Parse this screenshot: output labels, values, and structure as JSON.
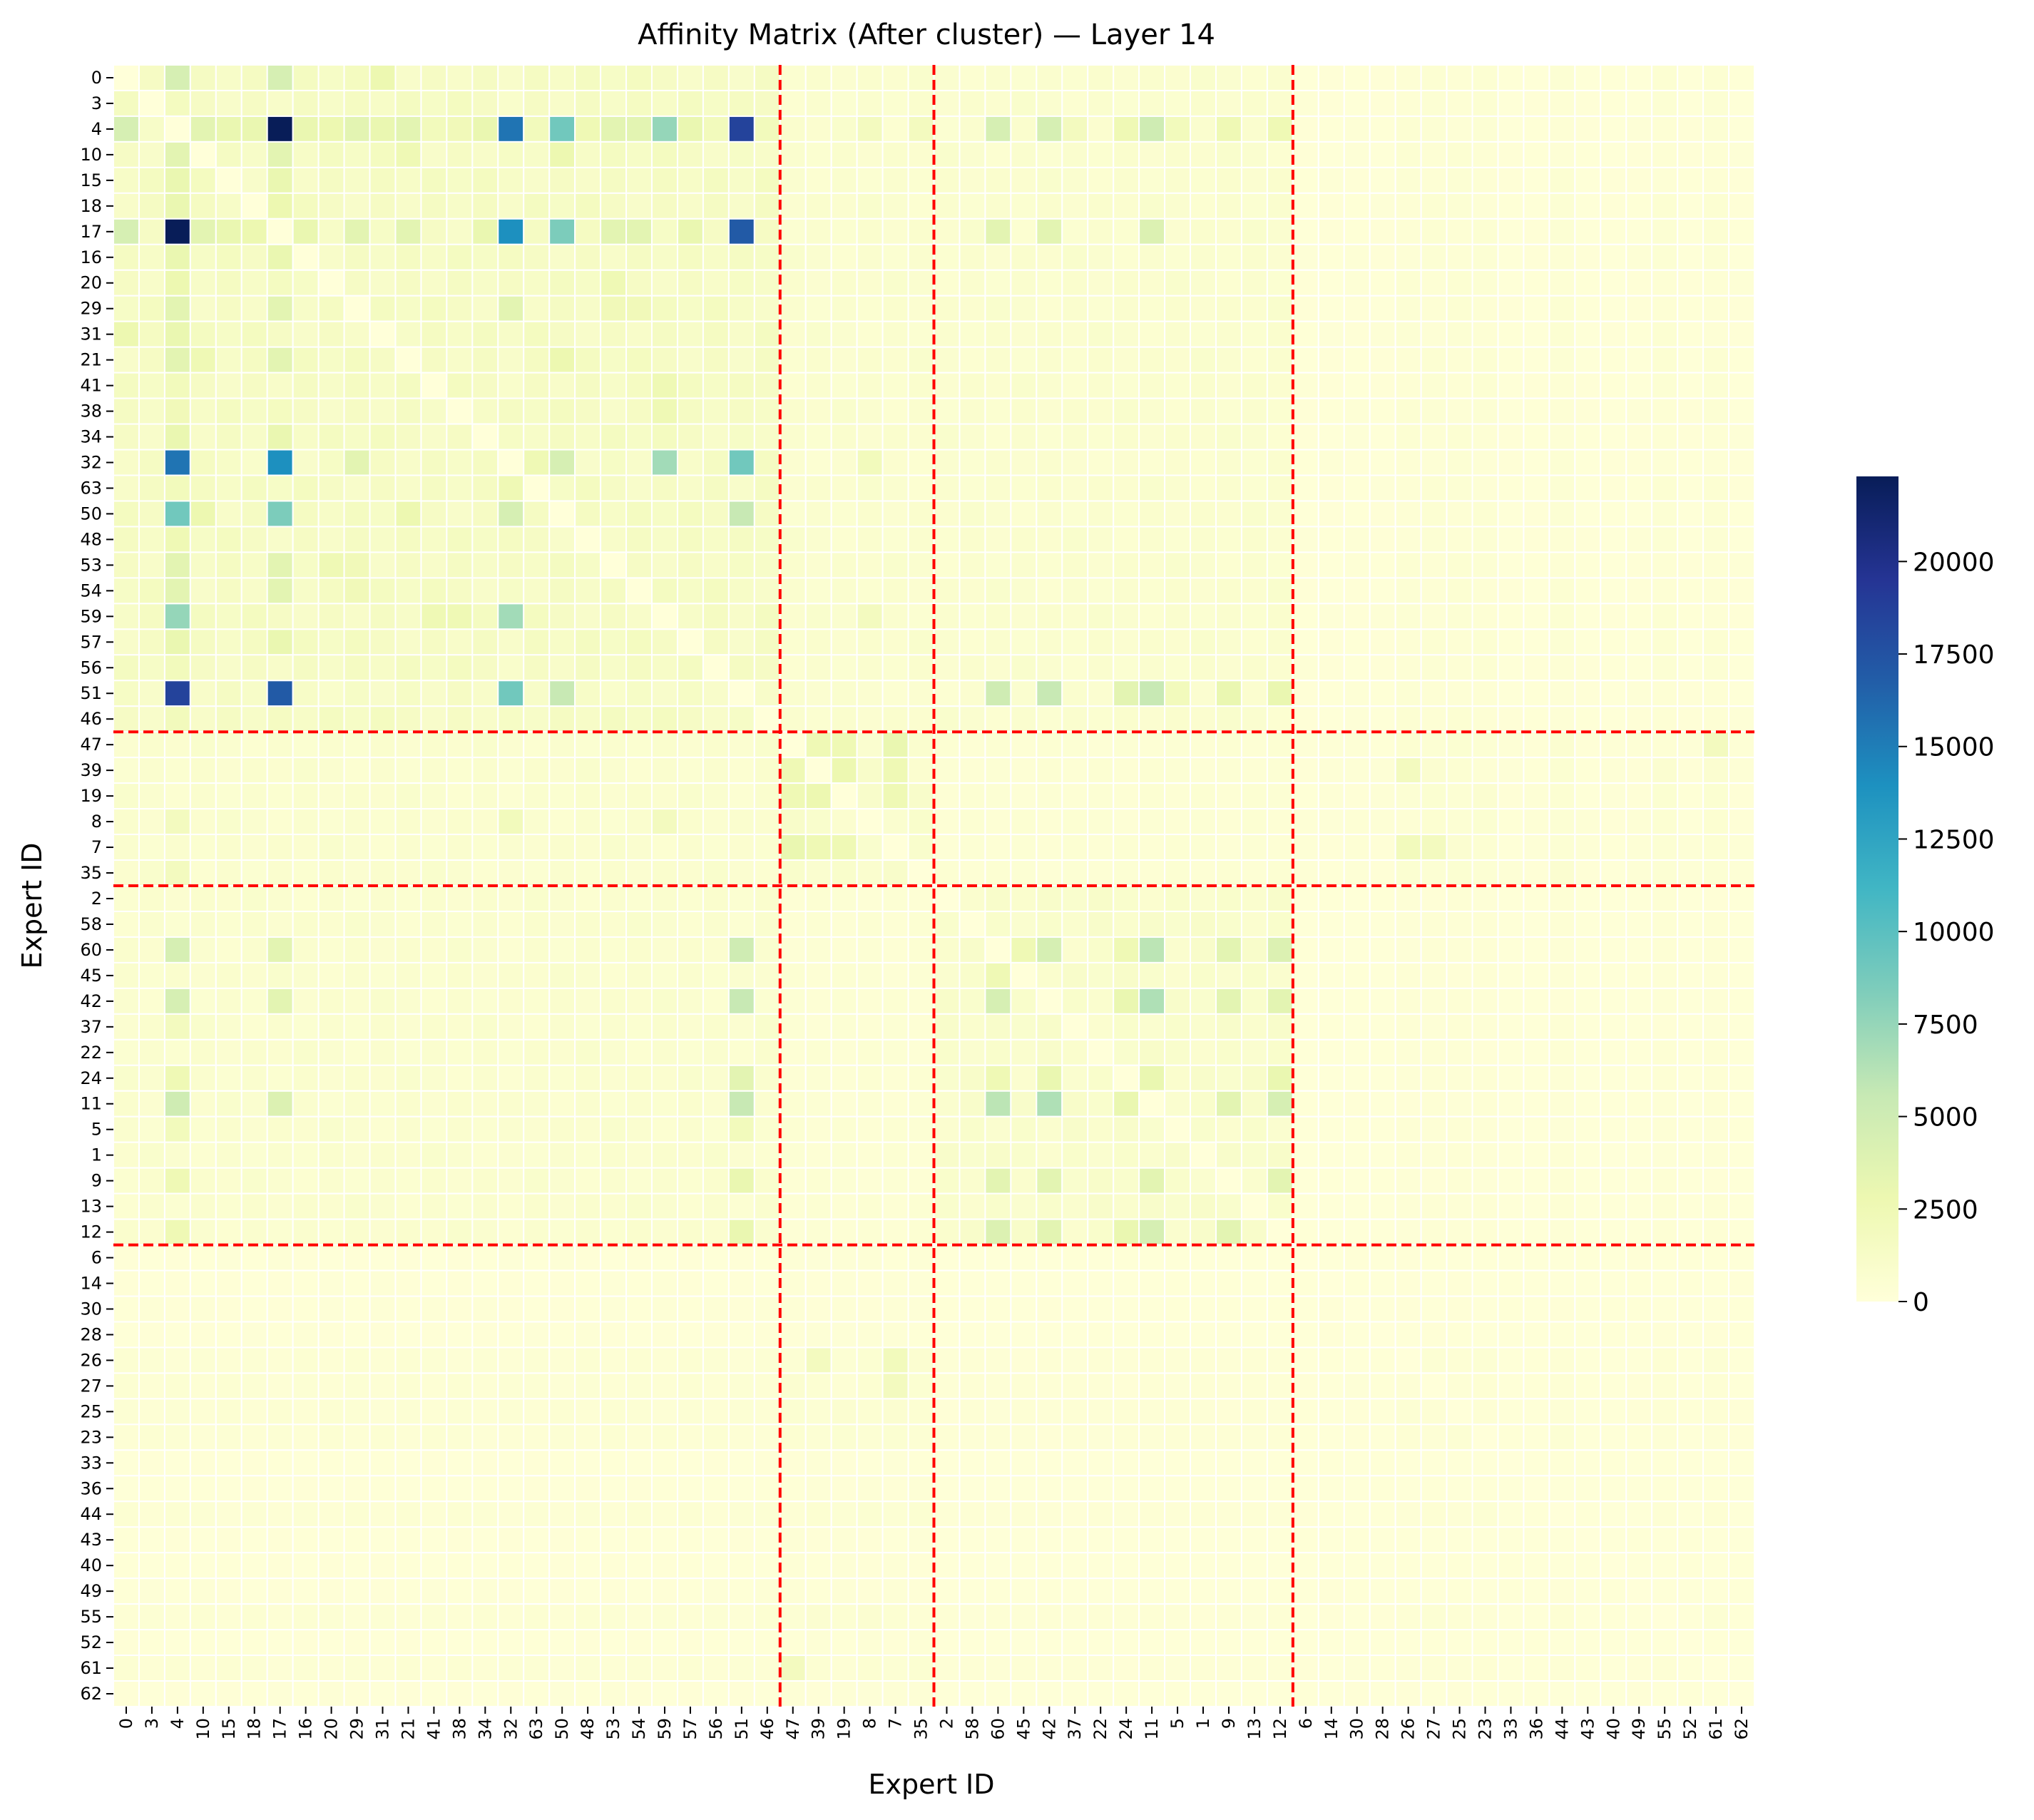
{
  "chart_data": {
    "type": "heatmap",
    "title": "Affinity Matrix (After cluster) — Layer 14",
    "xlabel": "Expert ID",
    "ylabel": "Expert ID",
    "order": [
      0,
      3,
      4,
      10,
      15,
      18,
      17,
      16,
      20,
      29,
      31,
      21,
      41,
      38,
      34,
      32,
      63,
      50,
      48,
      53,
      54,
      59,
      57,
      56,
      51,
      46,
      47,
      39,
      19,
      8,
      7,
      35,
      2,
      58,
      60,
      45,
      42,
      37,
      22,
      24,
      11,
      5,
      1,
      9,
      13,
      12,
      6,
      14,
      30,
      28,
      26,
      27,
      25,
      23,
      33,
      36,
      44,
      43,
      40,
      49,
      55,
      52,
      61,
      62
    ],
    "cluster_boundaries_after_index": [
      25,
      31,
      45
    ],
    "colorbar": {
      "min": 0,
      "max": 22300,
      "ticks": [
        0,
        2500,
        5000,
        7500,
        10000,
        12500,
        15000,
        17500,
        20000
      ],
      "colormap": [
        "#ffffd9",
        "#edf8b1",
        "#c7e9b4",
        "#7fcdbb",
        "#41b6c4",
        "#1d91c0",
        "#225ea8",
        "#253494",
        "#081d58"
      ]
    },
    "divider_color": "#ff0000",
    "grid": false,
    "values": {
      "default": 600,
      "background_by_block": {
        "c0c0": 1400,
        "c0c1": 700,
        "c0c2": 700,
        "c0c3": 400,
        "c1c1": 900,
        "c1c2": 400,
        "c1c3": 500,
        "c2c2": 900,
        "c2c3": 300,
        "c3c3": 350
      },
      "pairs": [
        [
          4,
          17,
          22300
        ],
        [
          4,
          51,
          18500
        ],
        [
          17,
          51,
          17000
        ],
        [
          4,
          32,
          15500
        ],
        [
          17,
          32,
          14000
        ],
        [
          4,
          50,
          9000
        ],
        [
          17,
          50,
          8500
        ],
        [
          4,
          59,
          7500
        ],
        [
          32,
          51,
          9000
        ],
        [
          32,
          59,
          7000
        ],
        [
          51,
          50,
          5500
        ],
        [
          32,
          50,
          4500
        ],
        [
          4,
          0,
          4500
        ],
        [
          17,
          0,
          4500
        ],
        [
          4,
          60,
          4500
        ],
        [
          17,
          60,
          3500
        ],
        [
          51,
          60,
          5000
        ],
        [
          4,
          42,
          4500
        ],
        [
          17,
          42,
          3500
        ],
        [
          51,
          42,
          5500
        ],
        [
          4,
          11,
          5000
        ],
        [
          17,
          11,
          4000
        ],
        [
          51,
          11,
          5500
        ],
        [
          4,
          12,
          2500
        ],
        [
          51,
          12,
          3000
        ],
        [
          4,
          24,
          2500
        ],
        [
          51,
          24,
          3500
        ],
        [
          4,
          9,
          2500
        ],
        [
          51,
          9,
          3000
        ],
        [
          4,
          10,
          3500
        ],
        [
          17,
          10,
          3500
        ],
        [
          4,
          21,
          3500
        ],
        [
          17,
          21,
          3500
        ],
        [
          4,
          29,
          3500
        ],
        [
          17,
          29,
          3500
        ],
        [
          4,
          31,
          3000
        ],
        [
          32,
          29,
          3500
        ],
        [
          4,
          53,
          3500
        ],
        [
          17,
          53,
          3500
        ],
        [
          4,
          54,
          3500
        ],
        [
          17,
          54,
          3500
        ],
        [
          4,
          57,
          3000
        ],
        [
          17,
          57,
          3000
        ],
        [
          60,
          42,
          4500
        ],
        [
          60,
          11,
          6000
        ],
        [
          42,
          11,
          6500
        ],
        [
          11,
          12,
          4500
        ],
        [
          60,
          12,
          4000
        ],
        [
          42,
          12,
          4000
        ],
        [
          11,
          9,
          3500
        ],
        [
          60,
          9,
          3500
        ],
        [
          42,
          9,
          3500
        ],
        [
          60,
          24,
          2500
        ],
        [
          42,
          24,
          3000
        ],
        [
          11,
          24,
          3000
        ],
        [
          12,
          60,
          4000
        ],
        [
          12,
          42,
          3500
        ],
        [
          12,
          24,
          3000
        ],
        [
          12,
          9,
          3500
        ],
        [
          60,
          45,
          2500
        ],
        [
          47,
          39,
          2500
        ],
        [
          47,
          19,
          2500
        ],
        [
          47,
          7,
          3000
        ],
        [
          39,
          19,
          2800
        ],
        [
          39,
          7,
          2500
        ],
        [
          19,
          7,
          2500
        ],
        [
          7,
          26,
          2000
        ],
        [
          7,
          27,
          1800
        ],
        [
          47,
          61,
          1800
        ],
        [
          39,
          26,
          1800
        ],
        [
          4,
          16,
          3000
        ],
        [
          17,
          16,
          3000
        ],
        [
          4,
          20,
          2800
        ],
        [
          4,
          41,
          2000
        ],
        [
          4,
          38,
          2200
        ],
        [
          4,
          34,
          3000
        ],
        [
          17,
          34,
          3000
        ],
        [
          4,
          48,
          2500
        ],
        [
          4,
          56,
          2000
        ],
        [
          4,
          46,
          2000
        ],
        [
          32,
          63,
          2500
        ],
        [
          59,
          38,
          2500
        ],
        [
          59,
          41,
          2500
        ],
        [
          4,
          63,
          2000
        ],
        [
          18,
          4,
          3000
        ],
        [
          15,
          4,
          3000
        ],
        [
          15,
          17,
          3000
        ],
        [
          18,
          17,
          2800
        ],
        [
          31,
          0,
          2800
        ],
        [
          21,
          10,
          2500
        ],
        [
          10,
          50,
          2800
        ],
        [
          50,
          21,
          2800
        ],
        [
          29,
          53,
          2200
        ],
        [
          20,
          53,
          2500
        ],
        [
          29,
          54,
          2200
        ],
        [
          4,
          5,
          2000
        ],
        [
          51,
          5,
          2000
        ],
        [
          4,
          37,
          1800
        ],
        [
          4,
          35,
          1800
        ],
        [
          32,
          8,
          2000
        ],
        [
          59,
          8,
          1800
        ],
        [
          4,
          8,
          1800
        ]
      ],
      "row_scale": {
        "4": 1.0,
        "17": 1.0,
        "32": 0.9,
        "51": 0.9,
        "6": 0.5,
        "14": 0.5,
        "30": 0.55,
        "28": 0.5,
        "33": 0.45,
        "36": 0.45,
        "43": 0.45,
        "40": 0.45,
        "49": 0.5,
        "52": 0.45,
        "62": 0.5
      }
    }
  }
}
